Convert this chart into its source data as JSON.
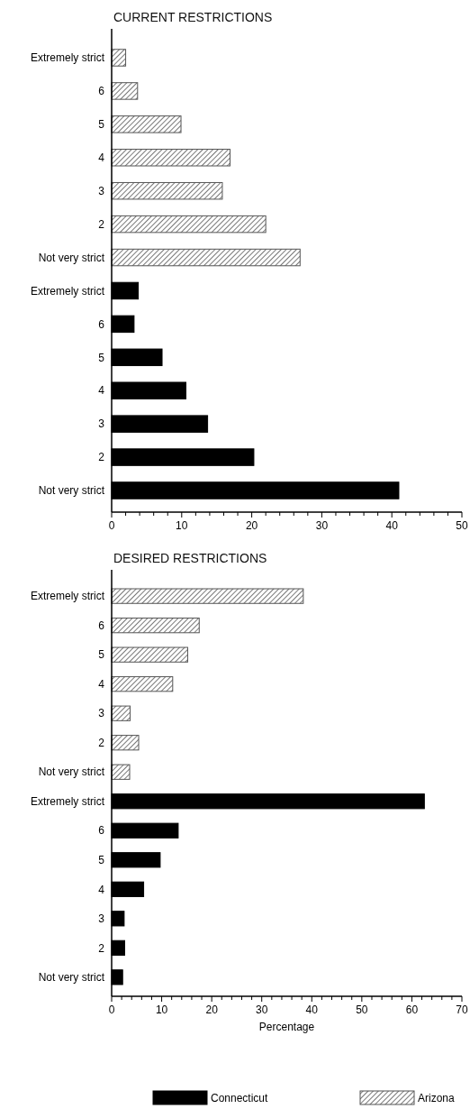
{
  "chart_data": [
    {
      "type": "bar",
      "title": "CURRENT RESTRICTIONS",
      "orientation": "horizontal",
      "categories": [
        "Extremely strict",
        "6",
        "5",
        "4",
        "3",
        "2",
        "Not very strict",
        "Extremely strict",
        "6",
        "5",
        "4",
        "3",
        "2",
        "Not very strict"
      ],
      "series": [
        {
          "color": "#555555",
          "values": [
            2.0,
            3.7,
            9.9,
            16.9,
            15.8,
            22.0,
            26.9,
            null,
            null,
            null,
            null,
            null,
            null,
            null
          ]
        },
        {
          "color": "#000000",
          "values": [
            null,
            null,
            null,
            null,
            null,
            null,
            null,
            3.8,
            3.2,
            7.2,
            10.6,
            13.7,
            20.3,
            41.0
          ]
        }
      ],
      "xlim": [
        0,
        50
      ],
      "xticks": [
        0,
        {
          "value": 2,
          "label": null
        },
        {
          "value": 4,
          "label": null
        },
        {
          "value": 6,
          "label": null
        },
        {
          "value": 8,
          "label": null
        },
        10,
        {
          "value": 12,
          "label": null
        },
        {
          "value": 14,
          "label": null
        },
        {
          "value": 16,
          "label": null
        },
        {
          "value": 18,
          "label": null
        },
        20,
        {
          "value": 22,
          "label": null
        },
        {
          "value": 24,
          "label": null
        },
        {
          "value": 26,
          "label": null
        },
        {
          "value": 28,
          "label": null
        },
        30,
        {
          "value": 32,
          "label": null
        },
        {
          "value": 34,
          "label": null
        },
        {
          "value": 36,
          "label": null
        },
        {
          "value": 38,
          "label": null
        },
        40,
        {
          "value": 42,
          "label": null
        },
        {
          "value": 44,
          "label": null
        },
        {
          "value": 46,
          "label": null
        },
        {
          "value": 48,
          "label": null
        },
        50
      ],
      "legend": false
    },
    {
      "type": "bar",
      "title": "DESIRED RESTRICTIONS",
      "orientation": "horizontal",
      "xlabel": "Percentage",
      "categories": [
        "Extremely strict",
        "6",
        "5",
        "4",
        "3",
        "2",
        "Not very strict",
        "Extremely strict",
        "6",
        "5",
        "4",
        "3",
        "2",
        "Not very strict"
      ],
      "series": [
        {
          "name": "Arizona",
          "color": "#555555",
          "values": [
            38.3,
            17.5,
            15.2,
            12.2,
            3.7,
            5.4,
            3.6,
            null,
            null,
            null,
            null,
            null,
            null,
            null
          ]
        },
        {
          "name": "Connecticut",
          "color": "#000000",
          "values": [
            null,
            null,
            null,
            null,
            null,
            null,
            null,
            62.5,
            13.3,
            9.7,
            6.4,
            2.5,
            2.6,
            2.2
          ]
        }
      ],
      "xlim": [
        0,
        70
      ],
      "xticks": [
        0,
        {
          "value": 2,
          "label": null
        },
        {
          "value": 4,
          "label": null
        },
        {
          "value": 6,
          "label": null
        },
        {
          "value": 8,
          "label": null
        },
        10,
        {
          "value": 12,
          "label": null
        },
        {
          "value": 14,
          "label": null
        },
        {
          "value": 16,
          "label": null
        },
        {
          "value": 18,
          "label": null
        },
        20,
        {
          "value": 22,
          "label": null
        },
        {
          "value": 24,
          "label": null
        },
        {
          "value": 26,
          "label": null
        },
        {
          "value": 28,
          "label": null
        },
        30,
        {
          "value": 32,
          "label": null
        },
        {
          "value": 34,
          "label": null
        },
        {
          "value": 36,
          "label": null
        },
        {
          "value": 38,
          "label": null
        },
        40,
        {
          "value": 42,
          "label": null
        },
        {
          "value": 44,
          "label": null
        },
        {
          "value": 46,
          "label": null
        },
        {
          "value": 48,
          "label": null
        },
        50,
        {
          "value": 52,
          "label": null
        },
        {
          "value": 54,
          "label": null
        },
        {
          "value": 56,
          "label": null
        },
        {
          "value": 58,
          "label": null
        },
        60,
        {
          "value": 62,
          "label": null
        },
        {
          "value": 64,
          "label": null
        },
        {
          "value": 66,
          "label": null
        },
        {
          "value": 68,
          "label": null
        },
        70
      ],
      "legend": "bottom"
    }
  ]
}
